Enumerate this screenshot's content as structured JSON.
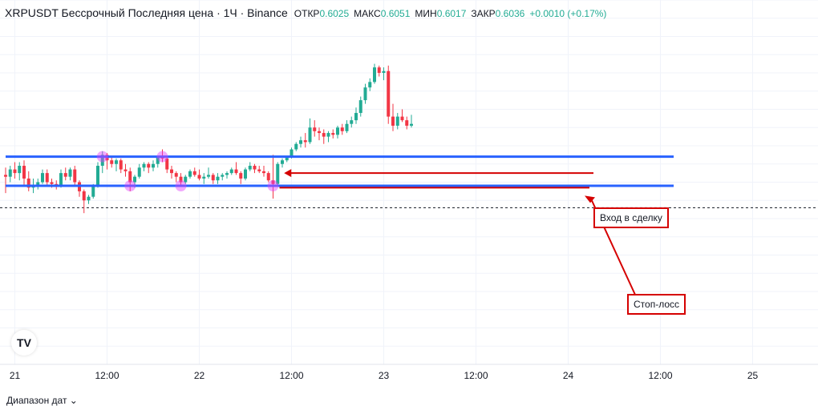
{
  "legend": {
    "title": "XRPUSDT Бессрочный Последняя цена · 1Ч · Binance",
    "open_label": "ОТКР",
    "open": "0.6025",
    "high_label": "МАКС",
    "high": "0.6051",
    "low_label": "МИН",
    "low": "0.6017",
    "close_label": "ЗАКР",
    "close": "0.6036",
    "change": "+0.0010 (+0.17%)"
  },
  "bottom_bar": {
    "date_range_label": "Диапазон дат ⌄"
  },
  "logo": {
    "text": "TV",
    "icon": "tradingview-logo-icon"
  },
  "colors": {
    "up": "#22ab94",
    "down": "#f23645",
    "level_line": "#2962ff",
    "annotation": "#d50000",
    "touch_marker": "#e040fb"
  },
  "annotations": {
    "entry": "Вход в сделку",
    "stop_loss": "Стоп-лосс"
  },
  "chart_data": {
    "type": "candlestick",
    "x_tick_labels": [
      "21",
      "12:00",
      "22",
      "12:00",
      "23",
      "12:00",
      "24",
      "12:00",
      "25"
    ],
    "x_tick_candle_index": [
      2,
      22,
      42,
      62,
      82,
      102,
      122,
      142,
      162
    ],
    "ylim": [
      0.595,
      0.615
    ],
    "last_close": 0.6036,
    "resistance_level": 0.6064,
    "support_level": 0.6048,
    "entry_price": 0.6055,
    "stop_loss_price": 0.6047,
    "touch_points": [
      {
        "candle": 21,
        "price": 0.6064
      },
      {
        "candle": 27,
        "price": 0.6048
      },
      {
        "candle": 34,
        "price": 0.6064
      },
      {
        "candle": 38,
        "price": 0.6048
      },
      {
        "candle": 58,
        "price": 0.6048
      }
    ],
    "series": [
      {
        "candles": [
          [
            0.6054,
            0.6058,
            0.6044,
            0.6053
          ],
          [
            0.6053,
            0.6059,
            0.605,
            0.6057
          ],
          [
            0.6057,
            0.6061,
            0.6052,
            0.6055
          ],
          [
            0.6055,
            0.6061,
            0.6051,
            0.6059
          ],
          [
            0.6059,
            0.6062,
            0.6048,
            0.6052
          ],
          [
            0.6052,
            0.6056,
            0.6045,
            0.6047
          ],
          [
            0.6047,
            0.6052,
            0.6044,
            0.6048
          ],
          [
            0.6048,
            0.6052,
            0.6046,
            0.605
          ],
          [
            0.605,
            0.6057,
            0.6049,
            0.6055
          ],
          [
            0.6055,
            0.6057,
            0.6048,
            0.605
          ],
          [
            0.605,
            0.6052,
            0.6047,
            0.6049
          ],
          [
            0.6049,
            0.6051,
            0.6046,
            0.6048
          ],
          [
            0.6048,
            0.6057,
            0.6047,
            0.6055
          ],
          [
            0.6055,
            0.6058,
            0.6051,
            0.6053
          ],
          [
            0.6053,
            0.6058,
            0.6051,
            0.6057
          ],
          [
            0.6057,
            0.6059,
            0.6048,
            0.605
          ],
          [
            0.605,
            0.6051,
            0.6042,
            0.6045
          ],
          [
            0.6045,
            0.6046,
            0.6033,
            0.604
          ],
          [
            0.604,
            0.6043,
            0.6038,
            0.6042
          ],
          [
            0.6042,
            0.6049,
            0.6041,
            0.6048
          ],
          [
            0.6048,
            0.6061,
            0.6047,
            0.6059
          ],
          [
            0.6059,
            0.6067,
            0.6055,
            0.6065
          ],
          [
            0.6065,
            0.6066,
            0.6057,
            0.6062
          ],
          [
            0.6062,
            0.6064,
            0.6058,
            0.606
          ],
          [
            0.606,
            0.6063,
            0.6056,
            0.6062
          ],
          [
            0.6062,
            0.6063,
            0.6055,
            0.6057
          ],
          [
            0.6057,
            0.606,
            0.6053,
            0.6056
          ],
          [
            0.6056,
            0.6058,
            0.6045,
            0.605
          ],
          [
            0.605,
            0.6054,
            0.6047,
            0.6053
          ],
          [
            0.6053,
            0.606,
            0.6052,
            0.6058
          ],
          [
            0.6058,
            0.6061,
            0.6056,
            0.606
          ],
          [
            0.606,
            0.6061,
            0.6055,
            0.6058
          ],
          [
            0.6058,
            0.6062,
            0.6056,
            0.606
          ],
          [
            0.606,
            0.6064,
            0.6058,
            0.6064
          ],
          [
            0.6064,
            0.6068,
            0.6061,
            0.6063
          ],
          [
            0.6063,
            0.6064,
            0.6055,
            0.6057
          ],
          [
            0.6057,
            0.6059,
            0.6052,
            0.6055
          ],
          [
            0.6055,
            0.6056,
            0.605,
            0.6053
          ],
          [
            0.6053,
            0.6055,
            0.6048,
            0.605
          ],
          [
            0.605,
            0.6054,
            0.6049,
            0.6053
          ],
          [
            0.6053,
            0.6057,
            0.6052,
            0.6056
          ],
          [
            0.6056,
            0.6058,
            0.6053,
            0.6054
          ],
          [
            0.6054,
            0.6057,
            0.6051,
            0.6052
          ],
          [
            0.6052,
            0.6055,
            0.6049,
            0.6053
          ],
          [
            0.6053,
            0.6058,
            0.6052,
            0.6054
          ],
          [
            0.6054,
            0.6055,
            0.6049,
            0.6051
          ],
          [
            0.6051,
            0.6055,
            0.6049,
            0.6053
          ],
          [
            0.6053,
            0.6055,
            0.6051,
            0.6054
          ],
          [
            0.6054,
            0.6056,
            0.6052,
            0.6055
          ],
          [
            0.6055,
            0.6058,
            0.6054,
            0.6057
          ],
          [
            0.6057,
            0.6061,
            0.6054,
            0.6055
          ],
          [
            0.6055,
            0.6056,
            0.6049,
            0.6052
          ],
          [
            0.6052,
            0.6058,
            0.6051,
            0.6057
          ],
          [
            0.6057,
            0.6061,
            0.6056,
            0.6059
          ],
          [
            0.6059,
            0.606,
            0.6055,
            0.6057
          ],
          [
            0.6057,
            0.6059,
            0.6055,
            0.6056
          ],
          [
            0.6056,
            0.6059,
            0.6053,
            0.6055
          ],
          [
            0.6055,
            0.6056,
            0.605,
            0.6051
          ],
          [
            0.6051,
            0.6065,
            0.6041,
            0.6049
          ],
          [
            0.6049,
            0.6061,
            0.6048,
            0.606
          ],
          [
            0.606,
            0.6063,
            0.6058,
            0.6062
          ],
          [
            0.6062,
            0.6064,
            0.6061,
            0.6064
          ],
          [
            0.6064,
            0.6069,
            0.6063,
            0.6068
          ],
          [
            0.6068,
            0.6072,
            0.6067,
            0.6071
          ],
          [
            0.6071,
            0.6075,
            0.6069,
            0.6073
          ],
          [
            0.6073,
            0.6077,
            0.6069,
            0.6072
          ],
          [
            0.6072,
            0.6085,
            0.6071,
            0.608
          ],
          [
            0.608,
            0.6084,
            0.6075,
            0.6078
          ],
          [
            0.6078,
            0.608,
            0.6073,
            0.6077
          ],
          [
            0.6077,
            0.6079,
            0.6071,
            0.6075
          ],
          [
            0.6075,
            0.6078,
            0.6072,
            0.6077
          ],
          [
            0.6077,
            0.6079,
            0.6074,
            0.6076
          ],
          [
            0.6076,
            0.6081,
            0.6074,
            0.608
          ],
          [
            0.608,
            0.6082,
            0.6076,
            0.6078
          ],
          [
            0.6078,
            0.6084,
            0.6077,
            0.6082
          ],
          [
            0.6082,
            0.6086,
            0.608,
            0.6084
          ],
          [
            0.6084,
            0.6091,
            0.6082,
            0.6088
          ],
          [
            0.6088,
            0.6097,
            0.6086,
            0.6095
          ],
          [
            0.6095,
            0.6104,
            0.6093,
            0.6102
          ],
          [
            0.6102,
            0.6107,
            0.61,
            0.6105
          ],
          [
            0.6105,
            0.6115,
            0.6104,
            0.6113
          ],
          [
            0.6113,
            0.6114,
            0.6108,
            0.611
          ],
          [
            0.611,
            0.6113,
            0.6106,
            0.6111
          ],
          [
            0.6111,
            0.6114,
            0.6082,
            0.6086
          ],
          [
            0.6086,
            0.6093,
            0.6078,
            0.6081
          ],
          [
            0.6081,
            0.6088,
            0.6079,
            0.6086
          ],
          [
            0.6086,
            0.609,
            0.6083,
            0.6084
          ],
          [
            0.6084,
            0.6086,
            0.6079,
            0.6081
          ],
          [
            0.6081,
            0.6087,
            0.608,
            0.6082
          ]
        ]
      }
    ]
  }
}
